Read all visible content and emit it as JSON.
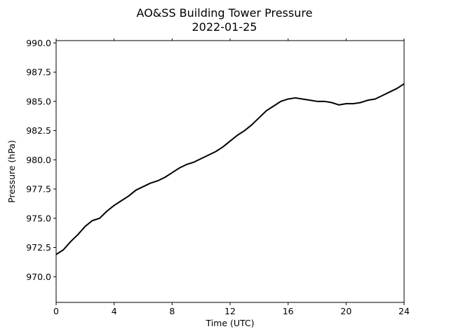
{
  "chart_data": {
    "type": "line",
    "title": "AO&SS Building Tower Pressure",
    "subtitle": "2022-01-25",
    "xlabel": "Time (UTC)",
    "ylabel": "Pressure (hPa)",
    "xlim": [
      0,
      24
    ],
    "ylim": [
      967.8,
      990.2
    ],
    "xticks": [
      0,
      4,
      8,
      12,
      16,
      20,
      24
    ],
    "yticks": [
      970.0,
      972.5,
      975.0,
      977.5,
      980.0,
      982.5,
      985.0,
      987.5,
      990.0
    ],
    "grid": false,
    "legend": "none",
    "series": [
      {
        "color": "#000000",
        "x": [
          0,
          0.5,
          1,
          1.5,
          2,
          2.5,
          3,
          3.5,
          4,
          4.5,
          5,
          5.5,
          6,
          6.5,
          7,
          7.5,
          8,
          8.5,
          9,
          9.5,
          10,
          10.5,
          11,
          11.5,
          12,
          12.5,
          13,
          13.5,
          14,
          14.5,
          15,
          15.5,
          16,
          16.5,
          17,
          17.5,
          18,
          18.5,
          19,
          19.5,
          20,
          20.5,
          21,
          21.5,
          22,
          22.5,
          23,
          23.5,
          24
        ],
        "y": [
          971.9,
          972.3,
          973.0,
          973.6,
          974.3,
          974.8,
          975.0,
          975.6,
          976.1,
          976.5,
          976.9,
          977.4,
          977.7,
          978.0,
          978.2,
          978.5,
          978.9,
          979.3,
          979.6,
          979.8,
          980.1,
          980.4,
          980.7,
          981.1,
          981.6,
          982.1,
          982.5,
          983.0,
          983.6,
          984.2,
          984.6,
          985.0,
          985.2,
          985.3,
          985.2,
          985.1,
          985.0,
          985.0,
          984.9,
          984.7,
          984.8,
          984.8,
          984.9,
          985.1,
          985.2,
          985.5,
          985.8,
          986.1,
          986.5
        ]
      }
    ]
  }
}
